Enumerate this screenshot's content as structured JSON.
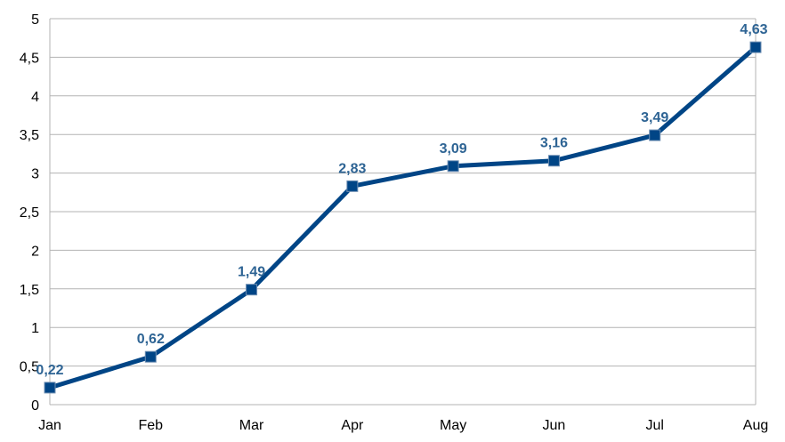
{
  "chart_data": {
    "type": "line",
    "categories": [
      "Jan",
      "Feb",
      "Mar",
      "Apr",
      "May",
      "Jun",
      "Jul",
      "Aug"
    ],
    "series": [
      {
        "values": [
          0.22,
          0.62,
          1.49,
          2.83,
          3.09,
          3.16,
          3.49,
          4.63
        ],
        "value_labels": [
          "0,22",
          "0,62",
          "1,49",
          "2,83",
          "3,09",
          "3,16",
          "3,49",
          "4,63"
        ],
        "color": "#004586",
        "marker": "square"
      }
    ],
    "ylim": [
      0,
      5
    ],
    "y_ticks": [
      0,
      0.5,
      1,
      1.5,
      2,
      2.5,
      3,
      3.5,
      4,
      4.5,
      5
    ],
    "y_tick_labels": [
      "0",
      "0,5",
      "1",
      "1,5",
      "2",
      "2,5",
      "3",
      "3,5",
      "4",
      "4,5",
      "5"
    ],
    "grid": true,
    "legend": "none",
    "gridline_color": "#b3b3b3",
    "label_color": "#2e6494"
  }
}
